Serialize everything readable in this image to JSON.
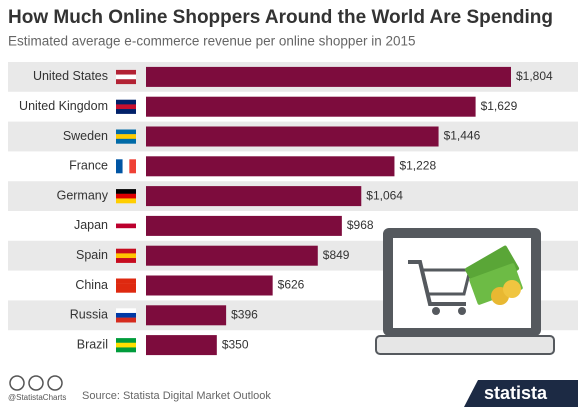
{
  "chart_data": {
    "type": "bar",
    "orientation": "horizontal",
    "title": "How Much Online Shoppers Around the World Are Spending",
    "subtitle": "Estimated average e-commerce revenue per online shopper in 2015",
    "categories": [
      "United States",
      "United Kingdom",
      "Sweden",
      "France",
      "Germany",
      "Japan",
      "Spain",
      "China",
      "Russia",
      "Brazil"
    ],
    "values": [
      1804,
      1629,
      1446,
      1228,
      1064,
      968,
      849,
      626,
      396,
      350
    ],
    "value_labels": [
      "$1,804",
      "$1,629",
      "$1,446",
      "$1,228",
      "$1,064",
      "$968",
      "$849",
      "$626",
      "$396",
      "$350"
    ],
    "color": "#7d0c3d",
    "source": "Source: Statista Digital Market Outlook",
    "handle": "@StatistaCharts",
    "brand": "statista"
  }
}
